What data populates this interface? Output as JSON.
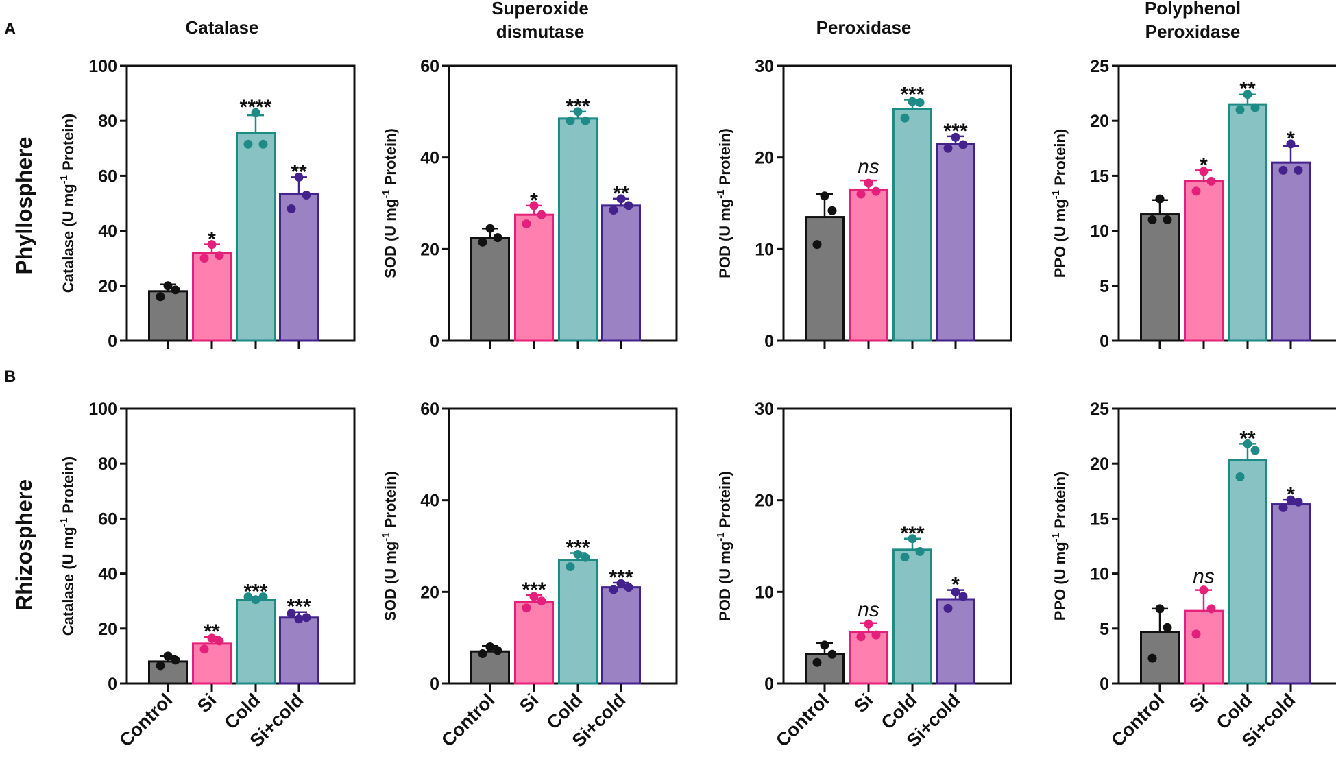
{
  "figure": {
    "panel_labels": [
      "A",
      "B"
    ],
    "row_labels": [
      "Phyllosphere",
      "Rhizosphere"
    ],
    "column_titles": [
      [
        "Catalase"
      ],
      [
        "Superoxide",
        "dismutase"
      ],
      [
        "Peroxidase"
      ],
      [
        "Polyphenol",
        "Peroxidase"
      ]
    ],
    "categories": [
      "Control",
      "Si",
      "Cold",
      "Si+cold"
    ],
    "colors": {
      "fills": [
        "#7a7a7a",
        "#ff7fae",
        "#88c2c2",
        "#9b82c3"
      ],
      "strokes": [
        "#111111",
        "#e5207a",
        "#1f8b87",
        "#44228e"
      ]
    }
  },
  "chart_data": [
    {
      "type": "bar",
      "row": "Phyllosphere",
      "title": "Catalase",
      "ylabel": "Catalase (U mg-1 Protein)",
      "ylim": [
        0,
        100
      ],
      "yticks": [
        0,
        20,
        40,
        60,
        80,
        100
      ],
      "categories": [
        "Control",
        "Si",
        "Cold",
        "Si+cold"
      ],
      "values": [
        18,
        32,
        75.5,
        53.5
      ],
      "errors": [
        2.5,
        3,
        6.5,
        6
      ],
      "points": [
        [
          20,
          16,
          18.5
        ],
        [
          35,
          30,
          31
        ],
        [
          83,
          71.5,
          71.5
        ],
        [
          59.5,
          48,
          53
        ]
      ],
      "annotations": [
        "",
        "*",
        "****",
        "**"
      ]
    },
    {
      "type": "bar",
      "row": "Phyllosphere",
      "title": "Superoxide dismutase",
      "ylabel": "SOD (U mg-1 Protein)",
      "ylim": [
        0,
        60
      ],
      "yticks": [
        0,
        20,
        40,
        60
      ],
      "categories": [
        "Control",
        "Si",
        "Cold",
        "Si+cold"
      ],
      "values": [
        22.5,
        27.5,
        48.5,
        29.5
      ],
      "errors": [
        2,
        2,
        1.5,
        1.5
      ],
      "points": [
        [
          24.5,
          21.5,
          22.5
        ],
        [
          29.5,
          25.5,
          27.5
        ],
        [
          50,
          48,
          48
        ],
        [
          31,
          28.5,
          29.5
        ]
      ],
      "annotations": [
        "",
        "*",
        "***",
        "**"
      ]
    },
    {
      "type": "bar",
      "row": "Phyllosphere",
      "title": "Peroxidase",
      "ylabel": "POD (U mg-1 Protein)",
      "ylim": [
        0,
        30
      ],
      "yticks": [
        0,
        10,
        20,
        30
      ],
      "categories": [
        "Control",
        "Si",
        "Cold",
        "Si+cold"
      ],
      "values": [
        13.5,
        16.5,
        25.3,
        21.5
      ],
      "errors": [
        2.5,
        1,
        1,
        0.8
      ],
      "points": [
        [
          15.8,
          10.5,
          14.2
        ],
        [
          17.2,
          16,
          16.3
        ],
        [
          26.1,
          24.3,
          26
        ],
        [
          22.2,
          21,
          21.4
        ]
      ],
      "annotations": [
        "",
        "ns",
        "***",
        "***"
      ]
    },
    {
      "type": "bar",
      "row": "Phyllosphere",
      "title": "Polyphenol Peroxidase",
      "ylabel": "PPO (U mg-1 Protein)",
      "ylim": [
        0,
        25
      ],
      "yticks": [
        0,
        5,
        10,
        15,
        20,
        25
      ],
      "categories": [
        "Control",
        "Si",
        "Cold",
        "Si+cold"
      ],
      "values": [
        11.5,
        14.5,
        21.5,
        16.2
      ],
      "errors": [
        1.3,
        1,
        0.9,
        1.5
      ],
      "points": [
        [
          12.9,
          11,
          11
        ],
        [
          15.4,
          13.6,
          14.5
        ],
        [
          22.4,
          21,
          21.2
        ],
        [
          17.9,
          15.5,
          15.5
        ]
      ],
      "annotations": [
        "",
        "*",
        "**",
        "*"
      ]
    },
    {
      "type": "bar",
      "row": "Rhizosphere",
      "title": "Catalase",
      "ylabel": "Catalase (U mg-1 Protein)",
      "ylim": [
        0,
        100
      ],
      "yticks": [
        0,
        20,
        40,
        60,
        80,
        100
      ],
      "categories": [
        "Control",
        "Si",
        "Cold",
        "Si+cold"
      ],
      "values": [
        8,
        14.5,
        30.5,
        24
      ],
      "errors": [
        2,
        2.5,
        1,
        2
      ],
      "points": [
        [
          10,
          6.5,
          8.5
        ],
        [
          16.5,
          12.5,
          15.5
        ],
        [
          30.5,
          31.5,
          31.5
        ],
        [
          23.5,
          25.5,
          24
        ]
      ],
      "annotations": [
        "",
        "**",
        "***",
        "***"
      ]
    },
    {
      "type": "bar",
      "row": "Rhizosphere",
      "title": "Superoxide dismutase",
      "ylabel": "SOD (U mg-1 Protein)",
      "ylim": [
        0,
        60
      ],
      "yticks": [
        0,
        20,
        40,
        60
      ],
      "categories": [
        "Control",
        "Si",
        "Cold",
        "Si+cold"
      ],
      "values": [
        7,
        17.8,
        27,
        21
      ],
      "errors": [
        1.2,
        1.5,
        1.5,
        1
      ],
      "points": [
        [
          8,
          6.5,
          7.2
        ],
        [
          19,
          16.5,
          18
        ],
        [
          28.2,
          25.5,
          27.5
        ],
        [
          21.8,
          20.5,
          21
        ]
      ],
      "annotations": [
        "",
        "***",
        "***",
        "***"
      ]
    },
    {
      "type": "bar",
      "row": "Rhizosphere",
      "title": "Peroxidase",
      "ylabel": "POD (U mg-1 Protein)",
      "ylim": [
        0,
        30
      ],
      "yticks": [
        0,
        10,
        20,
        30
      ],
      "categories": [
        "Control",
        "Si",
        "Cold",
        "Si+cold"
      ],
      "values": [
        3.2,
        5.6,
        14.6,
        9.2
      ],
      "errors": [
        1.2,
        1,
        1.2,
        1
      ],
      "points": [
        [
          4.2,
          2.3,
          3.2
        ],
        [
          6.5,
          5.1,
          5.3
        ],
        [
          15.8,
          13.8,
          14.4
        ],
        [
          10,
          8.2,
          9.5
        ]
      ],
      "annotations": [
        "",
        "ns",
        "***",
        "*"
      ]
    },
    {
      "type": "bar",
      "row": "Rhizosphere",
      "title": "Polyphenol Peroxidase",
      "ylabel": "PPO (U mg-1 Protein)",
      "ylim": [
        0,
        25
      ],
      "yticks": [
        0,
        5,
        10,
        15,
        20,
        25
      ],
      "categories": [
        "Control",
        "Si",
        "Cold",
        "Si+cold"
      ],
      "values": [
        4.7,
        6.6,
        20.3,
        16.3
      ],
      "errors": [
        2.1,
        1.9,
        1.5,
        0.4
      ],
      "points": [
        [
          6.8,
          2.3,
          5.1
        ],
        [
          8.5,
          4.5,
          6.8
        ],
        [
          21.8,
          18.8,
          21.2
        ],
        [
          16.7,
          16,
          16.5
        ]
      ],
      "annotations": [
        "",
        "ns",
        "**",
        "*"
      ]
    }
  ]
}
